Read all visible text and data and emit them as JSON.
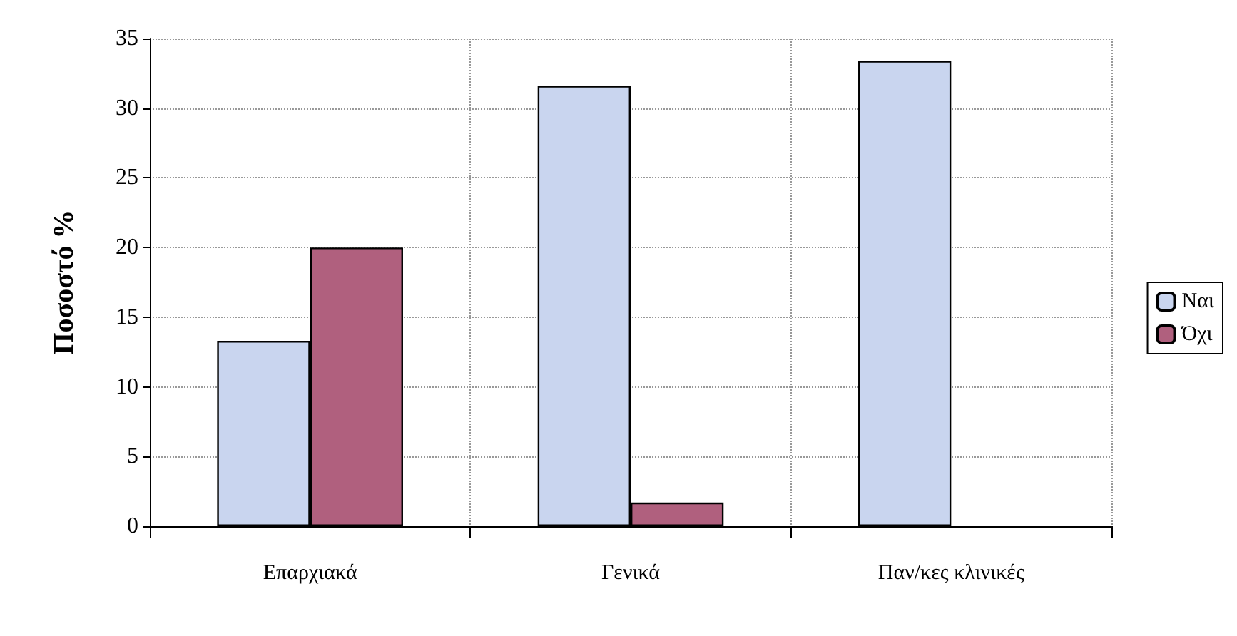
{
  "chart_data": {
    "type": "bar",
    "ylabel": "Ποσοστό %",
    "categories": [
      "Επαρχιακά",
      "Γενικά",
      "Παν/κες κλινικές"
    ],
    "series": [
      {
        "name": "Ναι",
        "color": "#c9d5ef",
        "values": [
          13.3,
          31.6,
          33.4
        ]
      },
      {
        "name": "Όχι",
        "color": "#b0607e",
        "values": [
          20,
          1.7,
          null
        ]
      }
    ],
    "ylim": [
      0,
      35
    ],
    "yticks": [
      0,
      5,
      10,
      15,
      20,
      25,
      30,
      35
    ],
    "grid": true,
    "legend": "right"
  }
}
